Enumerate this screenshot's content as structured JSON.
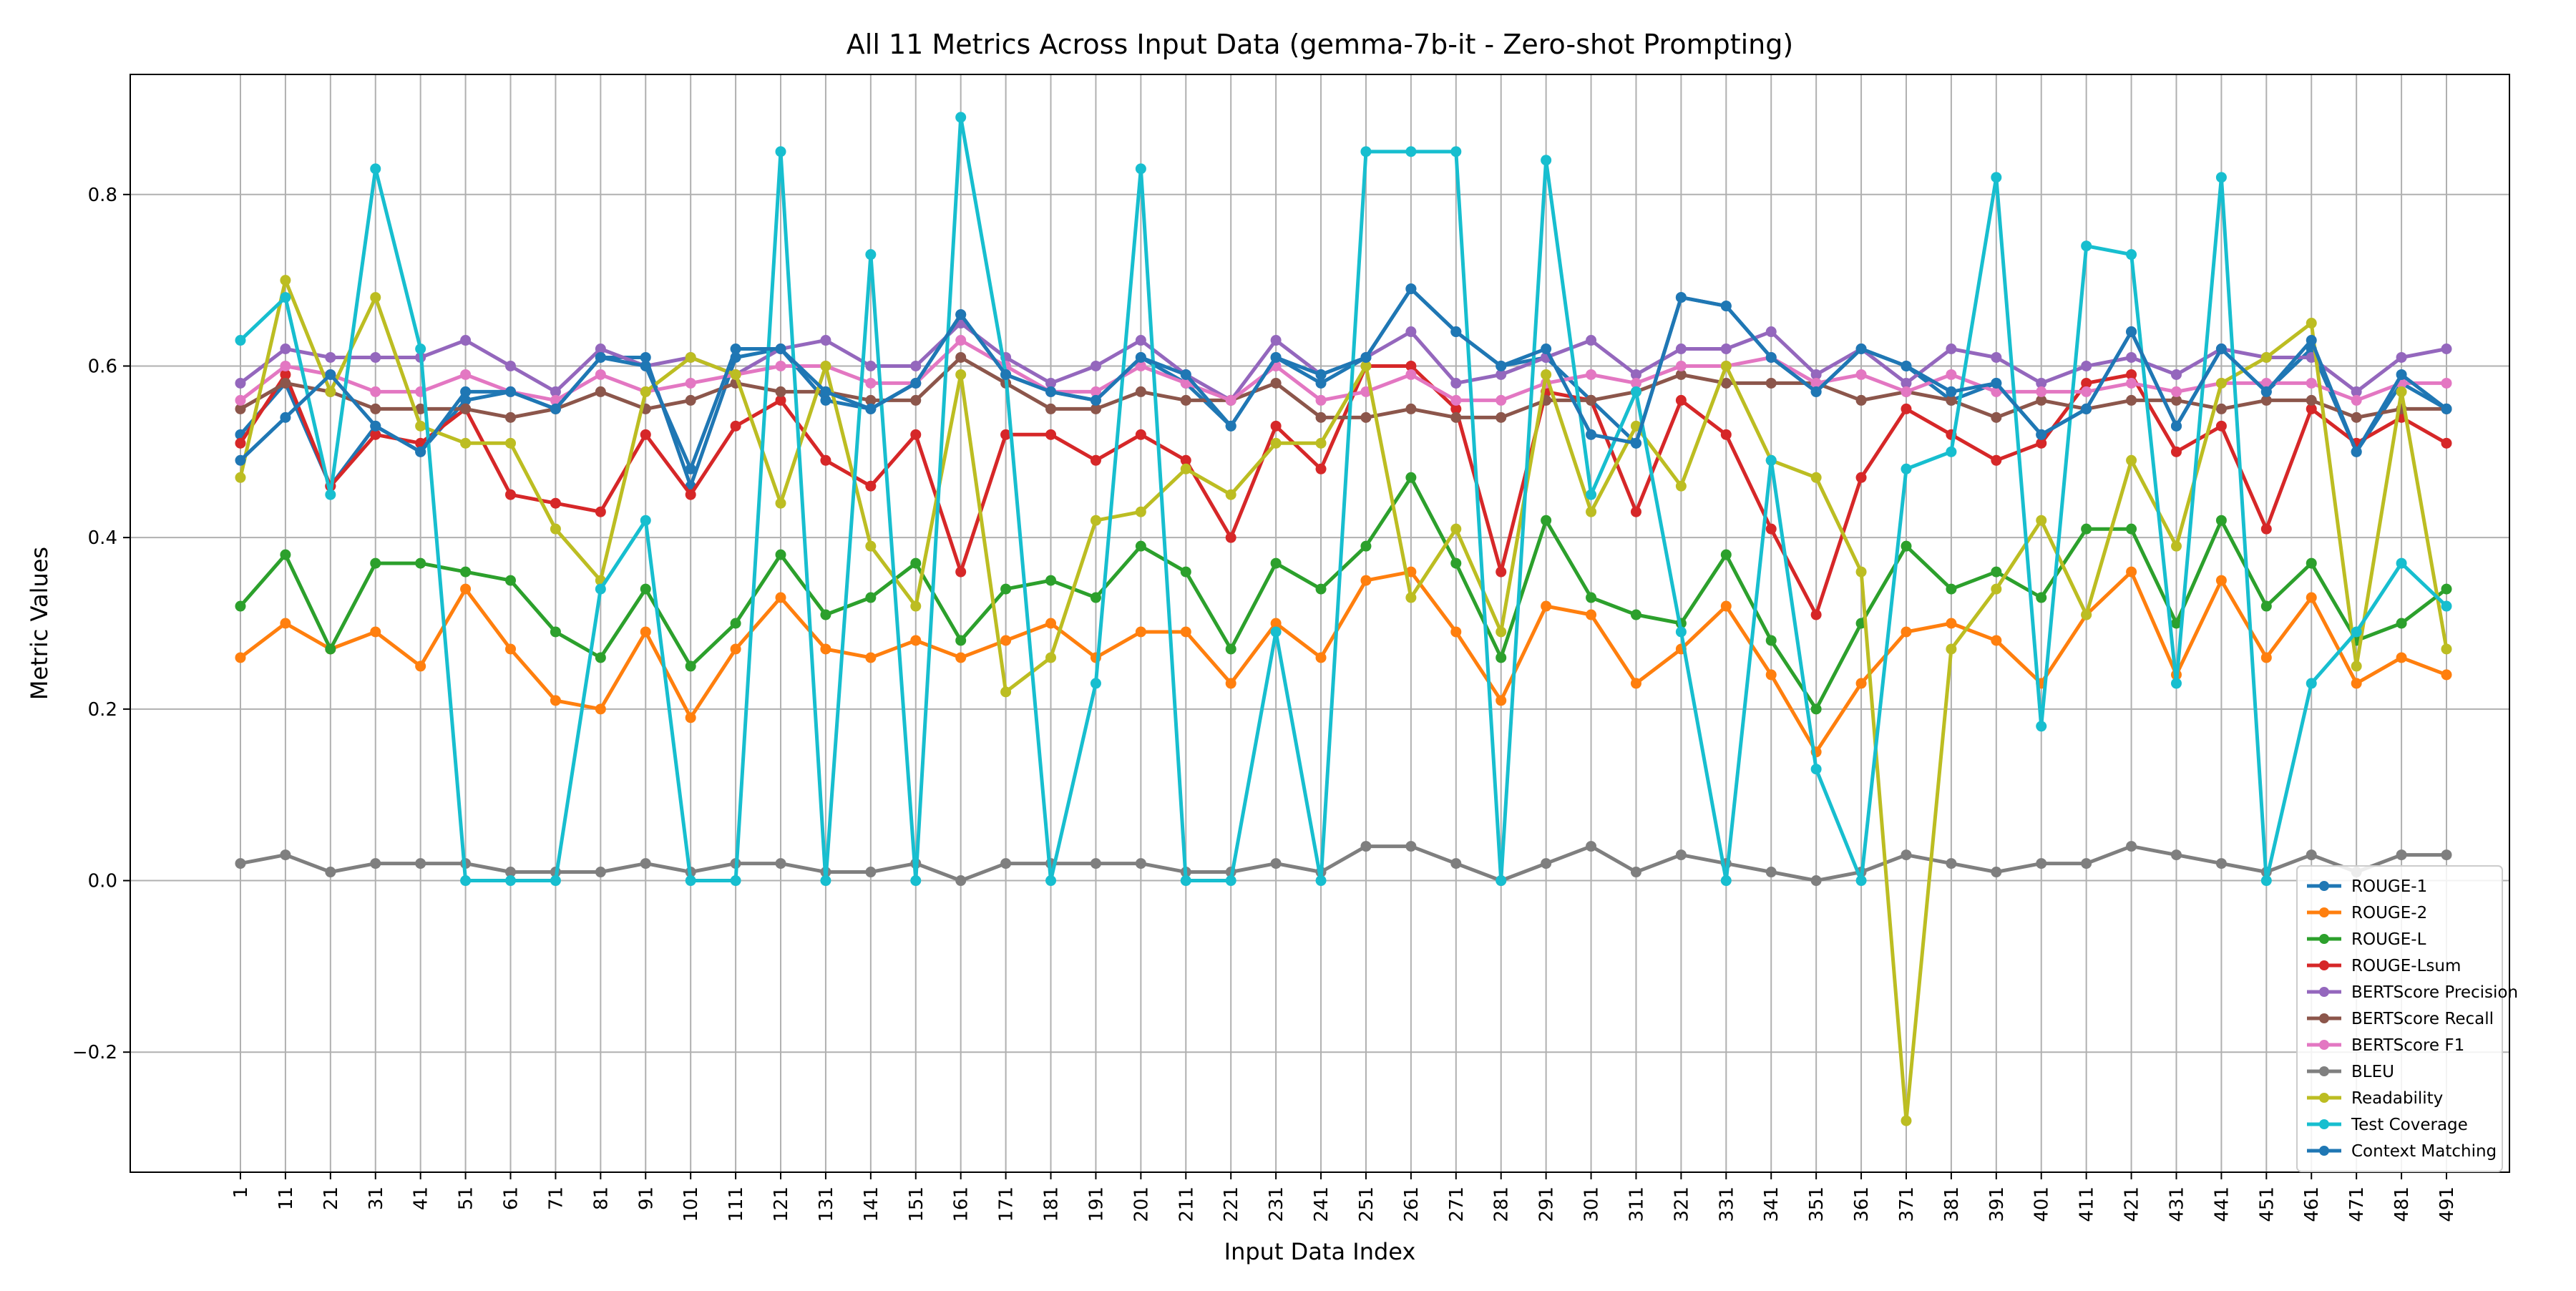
{
  "chart_data": {
    "type": "line",
    "title": "All 11 Metrics Across Input Data (gemma-7b-it - Zero-shot Prompting)",
    "xlabel": "Input Data Index",
    "ylabel": "Metric Values",
    "ylim": [
      -0.34,
      0.94
    ],
    "yticks": [
      -0.2,
      0.0,
      0.2,
      0.4,
      0.6,
      0.8
    ],
    "ytick_labels": [
      "−0.2",
      "0.0",
      "0.2",
      "0.4",
      "0.6",
      "0.8"
    ],
    "grid": true,
    "legend_position": "lower right",
    "x": [
      1,
      11,
      21,
      31,
      41,
      51,
      61,
      71,
      81,
      91,
      101,
      111,
      121,
      131,
      141,
      151,
      161,
      171,
      181,
      191,
      201,
      211,
      221,
      231,
      241,
      251,
      261,
      271,
      281,
      291,
      301,
      311,
      321,
      331,
      341,
      351,
      361,
      371,
      381,
      391,
      401,
      411,
      421,
      431,
      441,
      451,
      461,
      471,
      481,
      491
    ],
    "series": [
      {
        "name": "ROUGE-1",
        "color": "#1f77b4",
        "values": [
          0.52,
          0.58,
          0.46,
          0.53,
          0.5,
          0.56,
          0.57,
          0.55,
          0.61,
          0.61,
          0.46,
          0.61,
          0.62,
          0.56,
          0.55,
          0.58,
          0.66,
          0.59,
          0.57,
          0.56,
          0.61,
          0.58,
          0.53,
          0.61,
          0.58,
          0.61,
          0.69,
          0.64,
          0.6,
          0.61,
          0.56,
          0.51,
          0.68,
          0.67,
          0.61,
          0.57,
          0.62,
          0.6,
          0.56,
          0.58,
          0.52,
          0.55,
          0.64,
          0.53,
          0.62,
          0.57,
          0.62,
          0.5,
          0.58,
          0.55
        ]
      },
      {
        "name": "ROUGE-2",
        "color": "#ff7f0e",
        "values": [
          0.26,
          0.3,
          0.27,
          0.29,
          0.25,
          0.34,
          0.27,
          0.21,
          0.2,
          0.29,
          0.19,
          0.27,
          0.33,
          0.27,
          0.26,
          0.28,
          0.26,
          0.28,
          0.3,
          0.26,
          0.29,
          0.29,
          0.23,
          0.3,
          0.26,
          0.35,
          0.36,
          0.29,
          0.21,
          0.32,
          0.31,
          0.23,
          0.27,
          0.32,
          0.24,
          0.15,
          0.23,
          0.29,
          0.3,
          0.28,
          0.23,
          0.31,
          0.36,
          0.24,
          0.35,
          0.26,
          0.33,
          0.23,
          0.26,
          0.24
        ]
      },
      {
        "name": "ROUGE-L",
        "color": "#2ca02c",
        "values": [
          0.32,
          0.38,
          0.27,
          0.37,
          0.37,
          0.36,
          0.35,
          0.29,
          0.26,
          0.34,
          0.25,
          0.3,
          0.38,
          0.31,
          0.33,
          0.37,
          0.28,
          0.34,
          0.35,
          0.33,
          0.39,
          0.36,
          0.27,
          0.37,
          0.34,
          0.39,
          0.47,
          0.37,
          0.26,
          0.42,
          0.33,
          0.31,
          0.3,
          0.38,
          0.28,
          0.2,
          0.3,
          0.39,
          0.34,
          0.36,
          0.33,
          0.41,
          0.41,
          0.3,
          0.42,
          0.32,
          0.37,
          0.28,
          0.3,
          0.34
        ]
      },
      {
        "name": "ROUGE-Lsum",
        "color": "#d62728",
        "values": [
          0.51,
          0.59,
          0.46,
          0.52,
          0.51,
          0.55,
          0.45,
          0.44,
          0.43,
          0.52,
          0.45,
          0.53,
          0.56,
          0.49,
          0.46,
          0.52,
          0.36,
          0.52,
          0.52,
          0.49,
          0.52,
          0.49,
          0.4,
          0.53,
          0.48,
          0.6,
          0.6,
          0.55,
          0.36,
          0.57,
          0.56,
          0.43,
          0.56,
          0.52,
          0.41,
          0.31,
          0.47,
          0.55,
          0.52,
          0.49,
          0.51,
          0.58,
          0.59,
          0.5,
          0.53,
          0.41,
          0.55,
          0.51,
          0.54,
          0.51
        ]
      },
      {
        "name": "BERTScore Precision",
        "color": "#9467bd",
        "values": [
          0.58,
          0.62,
          0.61,
          0.61,
          0.61,
          0.63,
          0.6,
          0.57,
          0.62,
          0.6,
          0.61,
          0.59,
          0.62,
          0.63,
          0.6,
          0.6,
          0.65,
          0.61,
          0.58,
          0.6,
          0.63,
          0.59,
          0.56,
          0.63,
          0.59,
          0.61,
          0.64,
          0.58,
          0.59,
          0.61,
          0.63,
          0.59,
          0.62,
          0.62,
          0.64,
          0.59,
          0.62,
          0.58,
          0.62,
          0.61,
          0.58,
          0.6,
          0.61,
          0.59,
          0.62,
          0.61,
          0.61,
          0.57,
          0.61,
          0.62
        ]
      },
      {
        "name": "BERTScore Recall",
        "color": "#8c564b",
        "values": [
          0.55,
          0.58,
          0.57,
          0.55,
          0.55,
          0.55,
          0.54,
          0.55,
          0.57,
          0.55,
          0.56,
          0.58,
          0.57,
          0.57,
          0.56,
          0.56,
          0.61,
          0.58,
          0.55,
          0.55,
          0.57,
          0.56,
          0.56,
          0.58,
          0.54,
          0.54,
          0.55,
          0.54,
          0.54,
          0.56,
          0.56,
          0.57,
          0.59,
          0.58,
          0.58,
          0.58,
          0.56,
          0.57,
          0.56,
          0.54,
          0.56,
          0.55,
          0.56,
          0.56,
          0.55,
          0.56,
          0.56,
          0.54,
          0.55,
          0.55
        ]
      },
      {
        "name": "BERTScore F1",
        "color": "#e377c2",
        "values": [
          0.56,
          0.6,
          0.59,
          0.57,
          0.57,
          0.59,
          0.57,
          0.56,
          0.59,
          0.57,
          0.58,
          0.59,
          0.6,
          0.6,
          0.58,
          0.58,
          0.63,
          0.6,
          0.57,
          0.57,
          0.6,
          0.58,
          0.56,
          0.6,
          0.56,
          0.57,
          0.59,
          0.56,
          0.56,
          0.58,
          0.59,
          0.58,
          0.6,
          0.6,
          0.61,
          0.58,
          0.59,
          0.57,
          0.59,
          0.57,
          0.57,
          0.57,
          0.58,
          0.57,
          0.58,
          0.58,
          0.58,
          0.56,
          0.58,
          0.58
        ]
      },
      {
        "name": "BLEU",
        "color": "#7f7f7f",
        "values": [
          0.02,
          0.03,
          0.01,
          0.02,
          0.02,
          0.02,
          0.01,
          0.01,
          0.01,
          0.02,
          0.01,
          0.02,
          0.02,
          0.01,
          0.01,
          0.02,
          0.0,
          0.02,
          0.02,
          0.02,
          0.02,
          0.01,
          0.01,
          0.02,
          0.01,
          0.04,
          0.04,
          0.02,
          0.0,
          0.02,
          0.04,
          0.01,
          0.03,
          0.02,
          0.01,
          0.0,
          0.01,
          0.03,
          0.02,
          0.01,
          0.02,
          0.02,
          0.04,
          0.03,
          0.02,
          0.01,
          0.03,
          0.01,
          0.03,
          0.03
        ]
      },
      {
        "name": "Readability",
        "color": "#bcbd22",
        "values": [
          0.47,
          0.7,
          0.57,
          0.68,
          0.53,
          0.51,
          0.51,
          0.41,
          0.35,
          0.57,
          0.61,
          0.59,
          0.44,
          0.6,
          0.39,
          0.32,
          0.59,
          0.22,
          0.26,
          0.42,
          0.43,
          0.48,
          0.45,
          0.51,
          0.51,
          0.6,
          0.33,
          0.41,
          0.29,
          0.59,
          0.43,
          0.53,
          0.46,
          0.6,
          0.49,
          0.47,
          0.36,
          -0.28,
          0.27,
          0.34,
          0.42,
          0.31,
          0.49,
          0.39,
          0.58,
          0.61,
          0.65,
          0.25,
          0.57,
          0.27
        ]
      },
      {
        "name": "Test Coverage",
        "color": "#17becf",
        "values": [
          0.63,
          0.68,
          0.45,
          0.83,
          0.62,
          0.0,
          0.0,
          0.0,
          0.34,
          0.42,
          0.0,
          0.0,
          0.85,
          0.0,
          0.73,
          0.0,
          0.89,
          0.59,
          0.0,
          0.23,
          0.83,
          0.0,
          0.0,
          0.29,
          0.0,
          0.85,
          0.85,
          0.85,
          0.0,
          0.84,
          0.45,
          0.57,
          0.29,
          0.0,
          0.49,
          0.13,
          0.0,
          0.48,
          0.5,
          0.82,
          0.18,
          0.74,
          0.73,
          0.23,
          0.82,
          0.0,
          0.23,
          0.29,
          0.37,
          0.32
        ]
      },
      {
        "name": "Context Matching",
        "color": "#1f77b4",
        "values": [
          0.49,
          0.54,
          0.59,
          0.53,
          0.5,
          0.57,
          0.57,
          0.55,
          0.61,
          0.6,
          0.48,
          0.62,
          0.62,
          0.57,
          0.55,
          0.58,
          0.66,
          0.59,
          0.57,
          0.56,
          0.61,
          0.59,
          0.53,
          0.61,
          0.59,
          0.61,
          0.69,
          0.64,
          0.6,
          0.62,
          0.52,
          0.51,
          0.68,
          0.67,
          0.61,
          0.57,
          0.62,
          0.6,
          0.57,
          0.58,
          0.52,
          0.55,
          0.64,
          0.53,
          0.62,
          0.57,
          0.63,
          0.5,
          0.59,
          0.55
        ]
      }
    ]
  }
}
